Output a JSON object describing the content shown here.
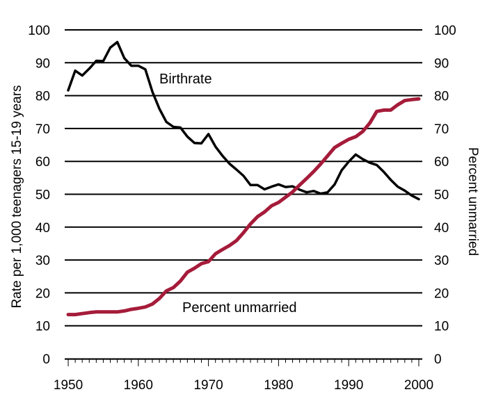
{
  "chart_data": {
    "type": "line",
    "title": "",
    "xlabel": "",
    "ylabel": "Rate per 1,000 teenagers 15-19 years",
    "y2label": "Percent unmarried",
    "xlim": [
      1949.5,
      2000.5
    ],
    "ylim": [
      0,
      100
    ],
    "y2lim": [
      0,
      100
    ],
    "grid": true,
    "x_ticks": [
      "1950",
      "1960",
      "1970",
      "1980",
      "1990",
      "2000"
    ],
    "y_ticks": [
      "0",
      "10",
      "20",
      "30",
      "40",
      "50",
      "60",
      "70",
      "80",
      "90",
      "100"
    ],
    "y2_ticks": [
      "0",
      "10",
      "20",
      "30",
      "40",
      "50",
      "60",
      "70",
      "80",
      "90",
      "100"
    ],
    "series": [
      {
        "name": "Birthrate",
        "color": "#000000",
        "axis": "left",
        "x": [
          1950,
          1951,
          1952,
          1953,
          1954,
          1955,
          1956,
          1957,
          1958,
          1959,
          1960,
          1961,
          1962,
          1963,
          1964,
          1965,
          1966,
          1967,
          1968,
          1969,
          1970,
          1971,
          1972,
          1973,
          1974,
          1975,
          1976,
          1977,
          1978,
          1979,
          1980,
          1981,
          1982,
          1983,
          1984,
          1985,
          1986,
          1987,
          1988,
          1989,
          1990,
          1991,
          1992,
          1993,
          1994,
          1995,
          1996,
          1997,
          1998,
          1999,
          2000
        ],
        "values": [
          81.6,
          87.6,
          86.1,
          88.2,
          90.6,
          90.5,
          94.6,
          96.3,
          91.4,
          89.1,
          89.1,
          88.0,
          81.2,
          76.0,
          72.0,
          70.5,
          70.3,
          67.5,
          65.6,
          65.5,
          68.3,
          64.5,
          61.7,
          59.3,
          57.5,
          55.6,
          52.8,
          52.8,
          51.5,
          52.3,
          53.0,
          52.2,
          52.4,
          51.4,
          50.6,
          51.0,
          50.2,
          50.6,
          53.0,
          57.3,
          59.9,
          62.1,
          60.7,
          59.6,
          58.9,
          56.8,
          54.4,
          52.3,
          51.1,
          49.6,
          48.5
        ]
      },
      {
        "name": "Percent unmarried",
        "color": "#a51c3a",
        "axis": "right",
        "x": [
          1950,
          1951,
          1952,
          1953,
          1954,
          1955,
          1956,
          1957,
          1958,
          1959,
          1960,
          1961,
          1962,
          1963,
          1964,
          1965,
          1966,
          1967,
          1968,
          1969,
          1970,
          1971,
          1972,
          1973,
          1974,
          1975,
          1976,
          1977,
          1978,
          1979,
          1980,
          1981,
          1982,
          1983,
          1984,
          1985,
          1986,
          1987,
          1988,
          1989,
          1990,
          1991,
          1992,
          1993,
          1994,
          1995,
          1996,
          1997,
          1998,
          1999,
          2000
        ],
        "values": [
          13.4,
          13.4,
          13.7,
          14.0,
          14.2,
          14.2,
          14.2,
          14.2,
          14.5,
          15.0,
          15.3,
          15.7,
          16.6,
          18.3,
          20.6,
          21.6,
          23.6,
          26.3,
          27.5,
          28.9,
          29.5,
          31.9,
          33.2,
          34.4,
          35.9,
          38.3,
          41.0,
          43.2,
          44.6,
          46.5,
          47.5,
          49.1,
          50.7,
          52.8,
          54.8,
          56.9,
          59.2,
          61.7,
          64.2,
          65.5,
          66.7,
          67.5,
          69.1,
          71.6,
          75.2,
          75.6,
          75.6,
          77.2,
          78.5,
          78.8,
          79.0
        ]
      }
    ],
    "labels": {
      "birthrate": "Birthrate",
      "unmarried": "Percent unmarried"
    }
  }
}
